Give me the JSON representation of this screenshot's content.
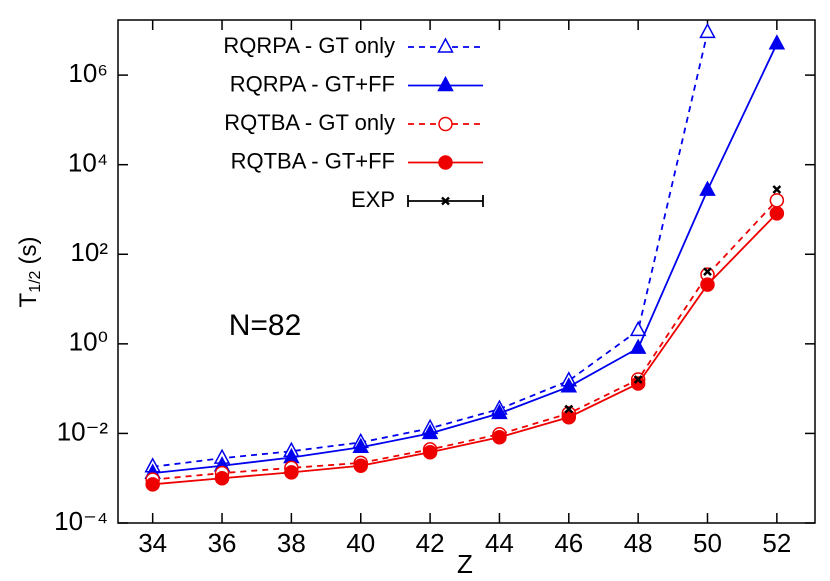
{
  "chart_data": {
    "type": "line",
    "xlabel": "Z",
    "ylabel": "T",
    "ylabel_sub": "1/2",
    "ylabel_unit": "(s)",
    "annotation": "N=82",
    "log_y": true,
    "legend": "upper left",
    "xlim": [
      33,
      53.1
    ],
    "ylim": [
      0.0001,
      17000000
    ],
    "xticks": [
      34,
      36,
      38,
      40,
      42,
      44,
      46,
      48,
      50,
      52
    ],
    "yticks": [
      {
        "value": 0.0001,
        "label": "10⁻⁴"
      },
      {
        "value": 0.01,
        "label": "10⁻²"
      },
      {
        "value": 1,
        "label": "10⁰"
      },
      {
        "value": 100,
        "label": "10²"
      },
      {
        "value": 10000,
        "label": "10⁴"
      },
      {
        "value": 1000000,
        "label": "10⁶"
      }
    ],
    "x": [
      34,
      36,
      38,
      40,
      42,
      44,
      46,
      48,
      50,
      52
    ],
    "series": [
      {
        "name": "RQRPA - GT only",
        "color": "#0000ee",
        "marker": "triangle",
        "filled": false,
        "dashed": true,
        "line": true,
        "values": [
          0.0018,
          0.0028,
          0.004,
          0.0063,
          0.013,
          0.035,
          0.15,
          2.0,
          9000000,
          null
        ]
      },
      {
        "name": "RQRPA - GT+FF",
        "color": "#0000ee",
        "marker": "triangle",
        "filled": true,
        "dashed": false,
        "line": true,
        "values": [
          0.0013,
          0.0019,
          0.0029,
          0.0049,
          0.01,
          0.028,
          0.11,
          0.8,
          2700,
          5000000
        ]
      },
      {
        "name": "RQTBA - GT only",
        "color": "#ee0000",
        "marker": "circle",
        "filled": false,
        "dashed": true,
        "line": true,
        "values": [
          0.00093,
          0.0013,
          0.0017,
          0.0022,
          0.0044,
          0.0096,
          0.028,
          0.16,
          35,
          1600
        ]
      },
      {
        "name": "RQTBA - GT+FF",
        "color": "#ee0000",
        "marker": "circle",
        "filled": true,
        "dashed": false,
        "line": true,
        "values": [
          0.00073,
          0.001,
          0.00135,
          0.0019,
          0.0038,
          0.0082,
          0.023,
          0.13,
          21,
          820
        ]
      },
      {
        "name": "EXP",
        "color": "#000000",
        "marker": "x",
        "filled": true,
        "dashed": false,
        "line": false,
        "values": [
          null,
          null,
          null,
          null,
          null,
          null,
          0.035,
          0.16,
          41,
          2800
        ]
      }
    ]
  }
}
